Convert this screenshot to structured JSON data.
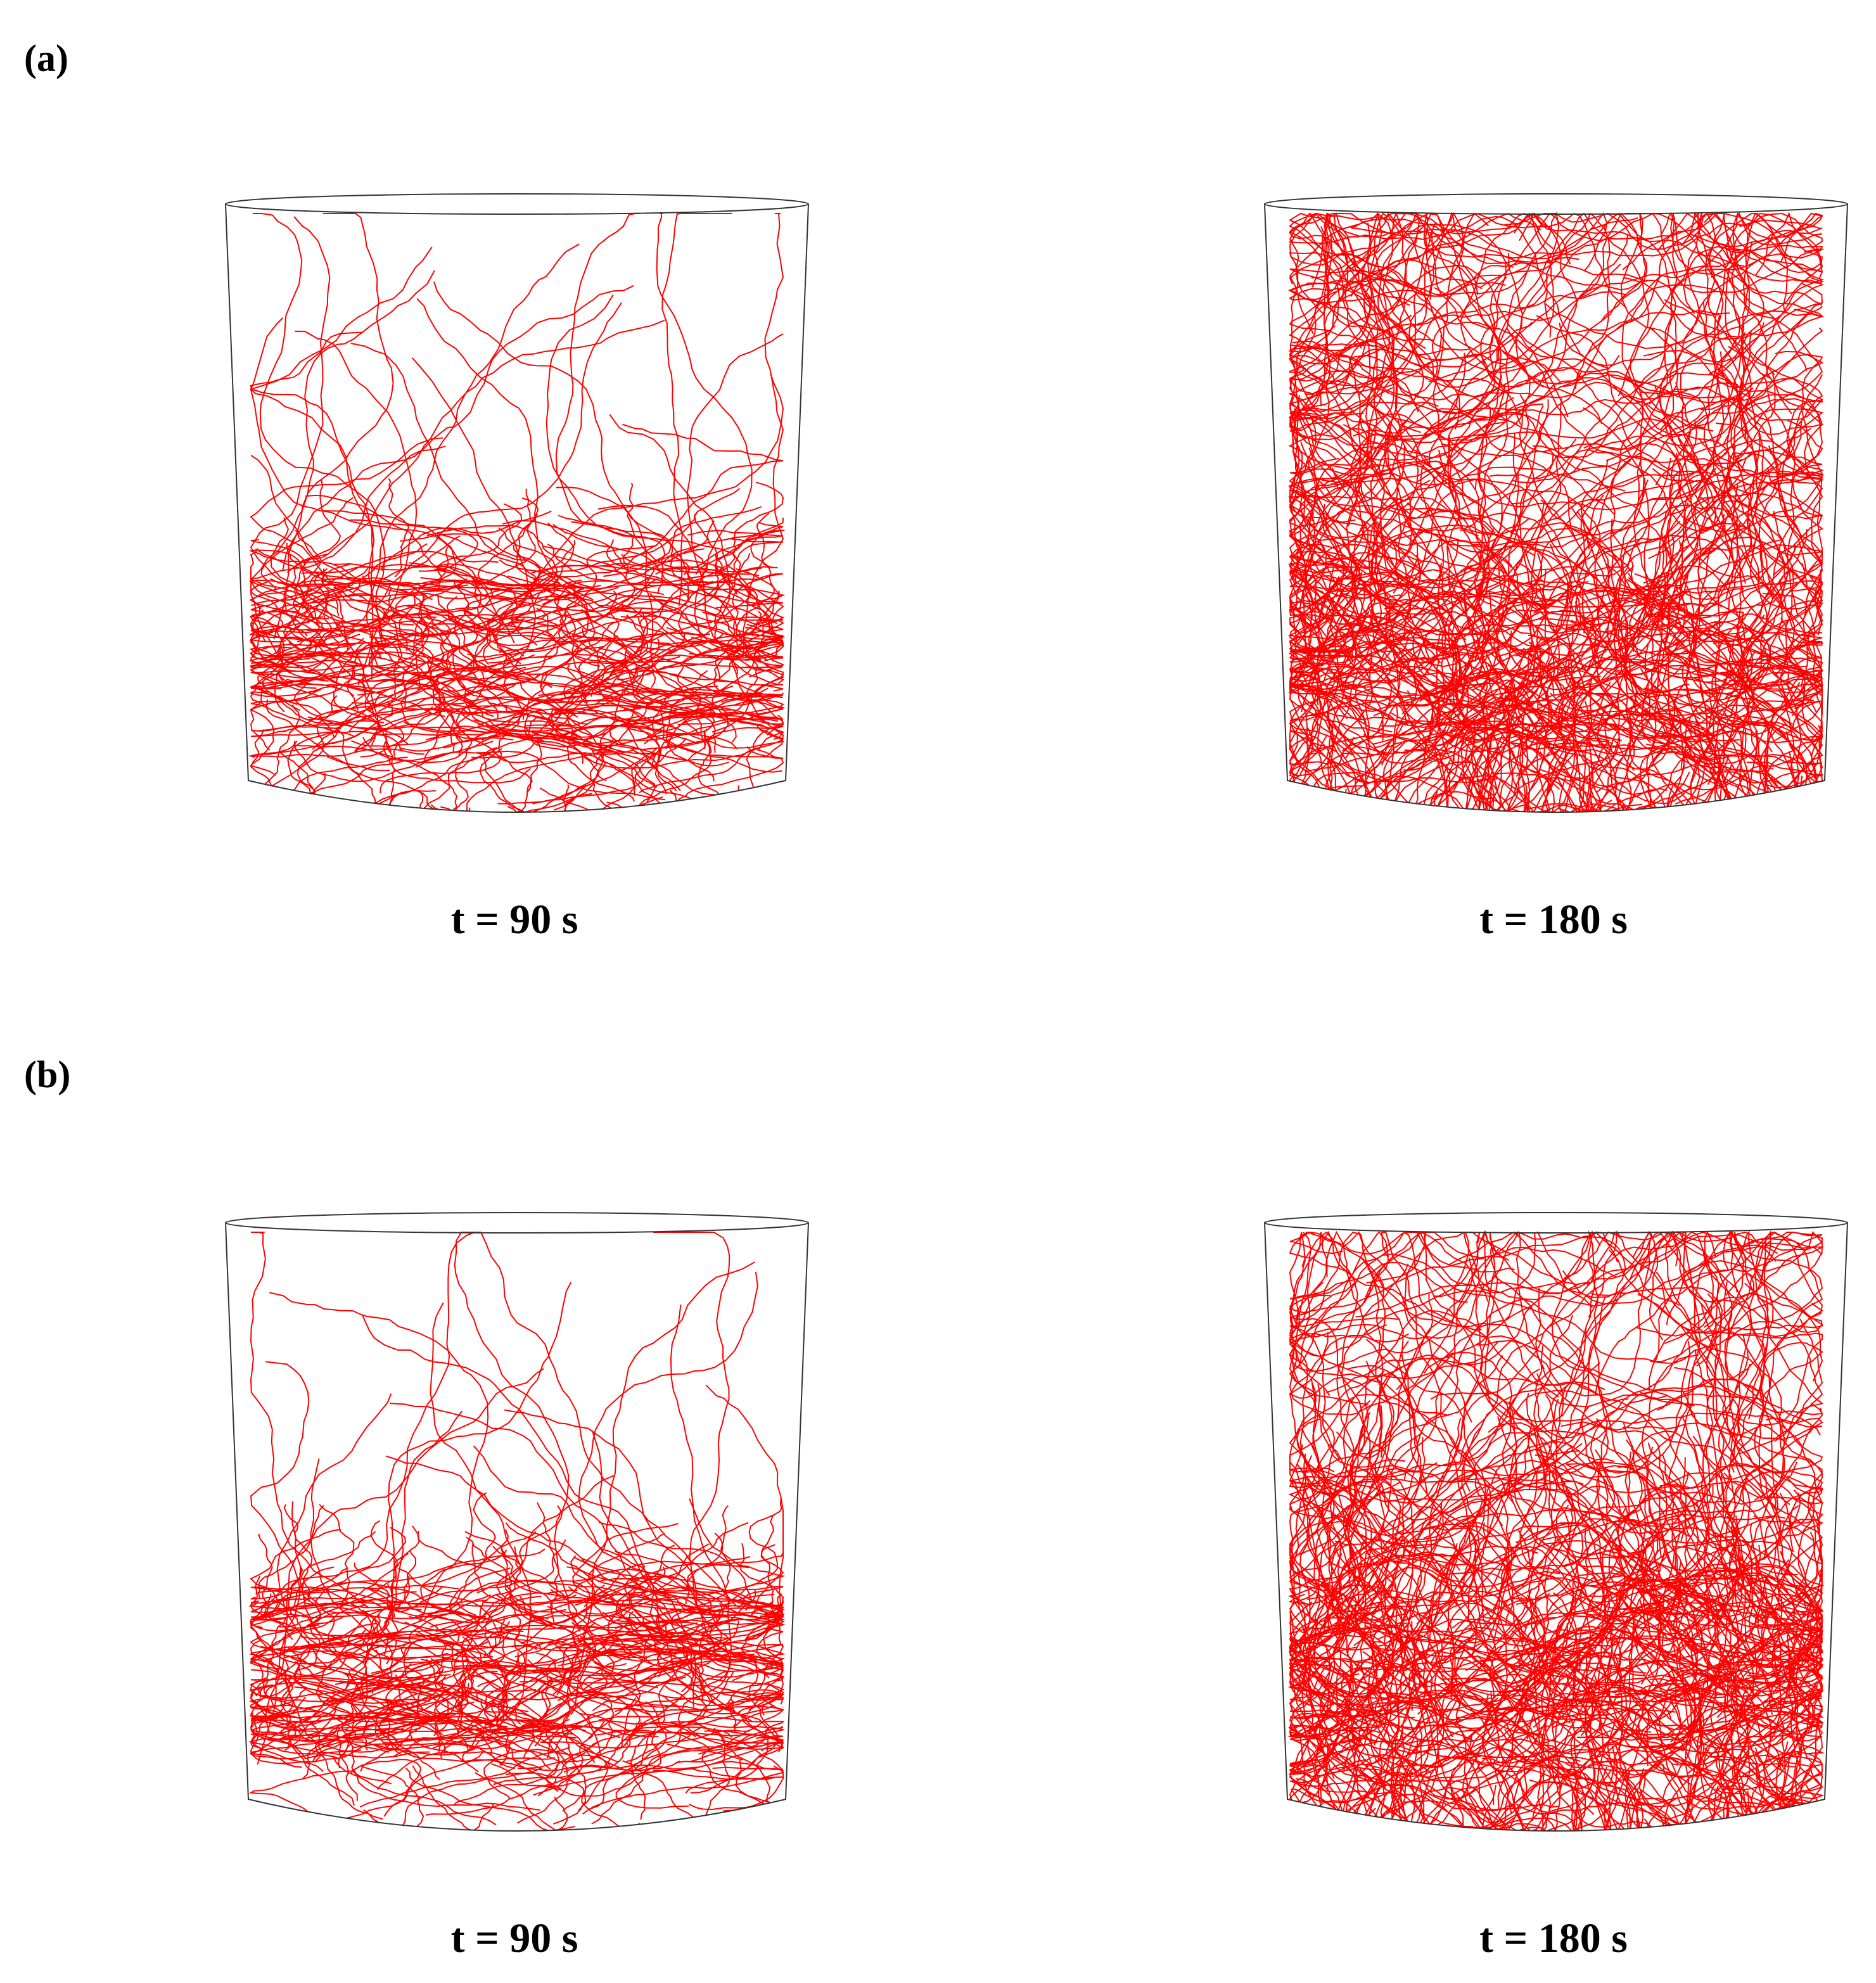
{
  "panels": [
    {
      "label": "(a)",
      "subfigures": [
        {
          "caption": "t = 90 s"
        },
        {
          "caption": "t = 180 s"
        }
      ]
    },
    {
      "label": "(b)",
      "subfigures": [
        {
          "caption": "t = 90 s"
        },
        {
          "caption": "t = 180 s"
        }
      ]
    }
  ]
}
